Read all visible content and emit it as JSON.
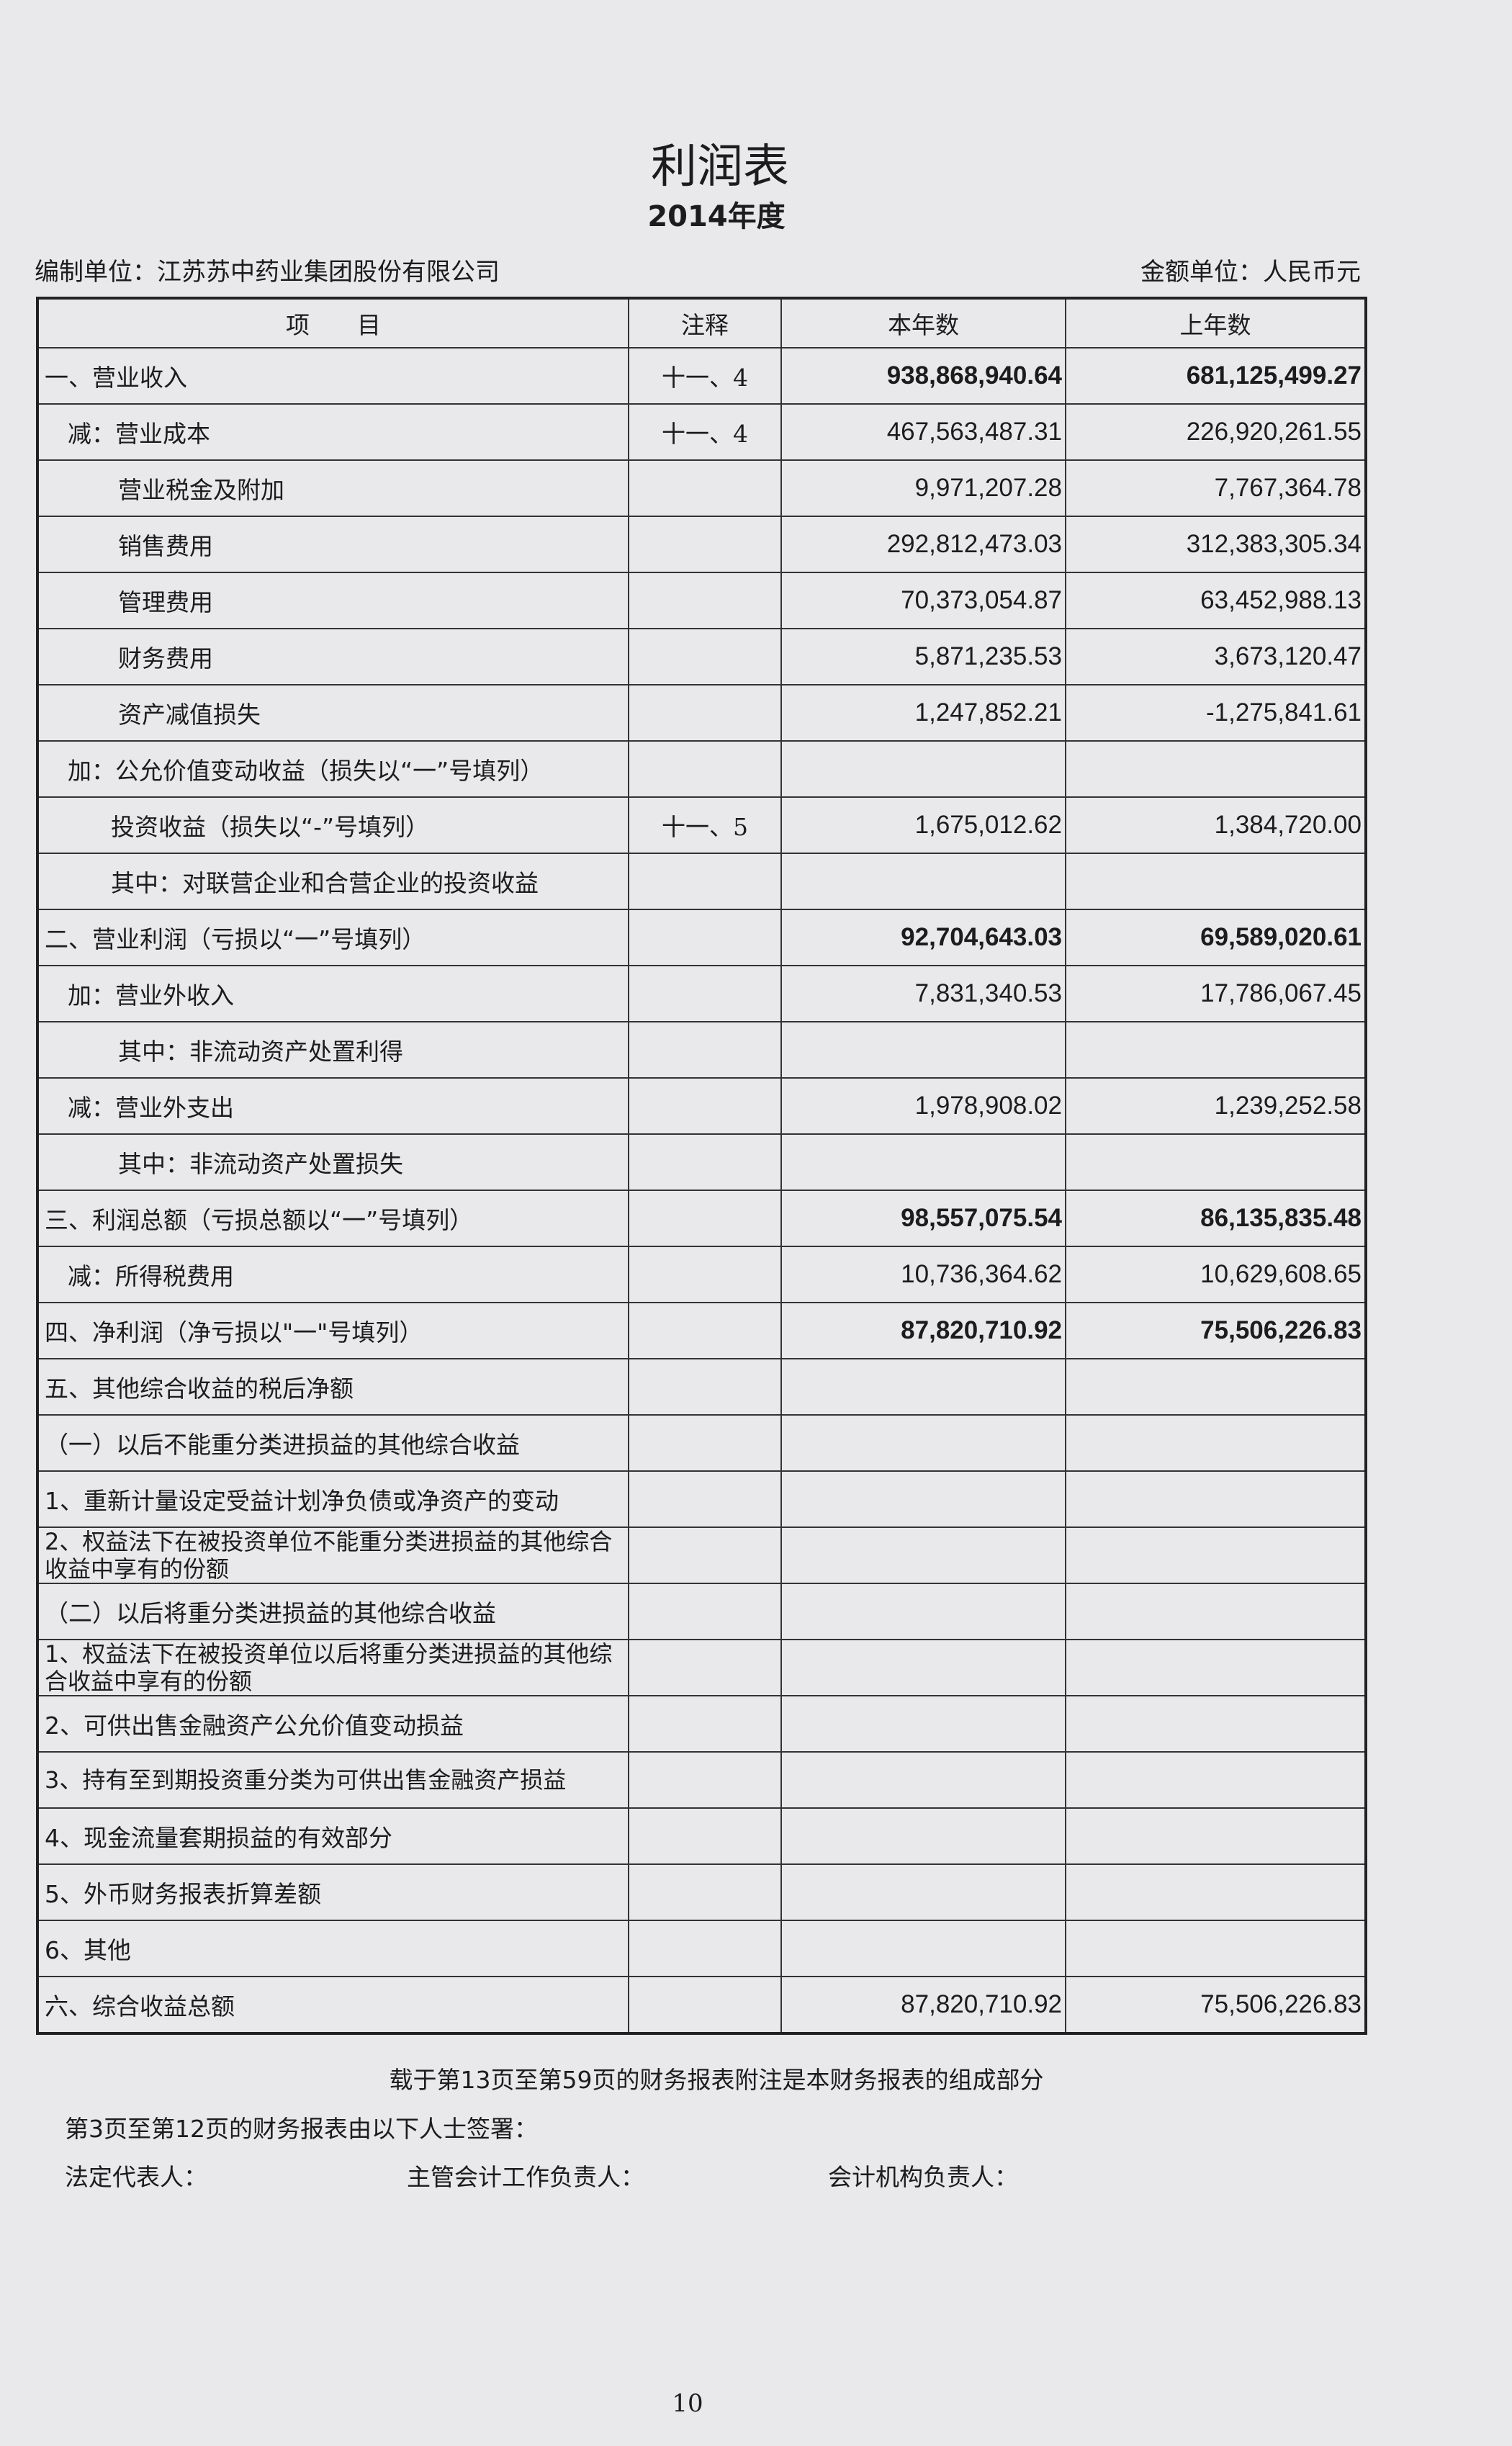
{
  "title": "利润表",
  "subtitle": "2014年度",
  "prepared_by": "编制单位：江苏苏中药业集团股份有限公司",
  "currency_unit": "金额单位：人民币元",
  "table": {
    "headers": [
      "项　　目",
      "注释",
      "本年数",
      "上年数"
    ],
    "rows": [
      {
        "item": "一、营业收入",
        "note": "十一、4",
        "current": "938,868,940.64",
        "prior": "681,125,499.27",
        "indent": 0,
        "bold": true
      },
      {
        "item": "减：营业成本",
        "note": "十一、4",
        "current": "467,563,487.31",
        "prior": "226,920,261.55",
        "indent": 1
      },
      {
        "item": "营业税金及附加",
        "note": "",
        "current": "9,971,207.28",
        "prior": "7,767,364.78",
        "indent": 2
      },
      {
        "item": "销售费用",
        "note": "",
        "current": "292,812,473.03",
        "prior": "312,383,305.34",
        "indent": 2
      },
      {
        "item": "管理费用",
        "note": "",
        "current": "70,373,054.87",
        "prior": "63,452,988.13",
        "indent": 2
      },
      {
        "item": "财务费用",
        "note": "",
        "current": "5,871,235.53",
        "prior": "3,673,120.47",
        "indent": 2
      },
      {
        "item": "资产减值损失",
        "note": "",
        "current": "1,247,852.21",
        "prior": "-1,275,841.61",
        "indent": 2
      },
      {
        "item": "加：公允价值变动收益（损失以“一”号填列）",
        "note": "",
        "current": "",
        "prior": "",
        "indent": 1
      },
      {
        "item": "投资收益（损失以“-”号填列）",
        "note": "十一、5",
        "current": "1,675,012.62",
        "prior": "1,384,720.00",
        "indent": 3
      },
      {
        "item": "其中：对联营企业和合营企业的投资收益",
        "note": "",
        "current": "",
        "prior": "",
        "indent": 3
      },
      {
        "item": "二、营业利润（亏损以“一”号填列）",
        "note": "",
        "current": "92,704,643.03",
        "prior": "69,589,020.61",
        "indent": 0,
        "bold": true
      },
      {
        "item": "加：营业外收入",
        "note": "",
        "current": "7,831,340.53",
        "prior": "17,786,067.45",
        "indent": 1
      },
      {
        "item": "其中：非流动资产处置利得",
        "note": "",
        "current": "",
        "prior": "",
        "indent": 2
      },
      {
        "item": "减：营业外支出",
        "note": "",
        "current": "1,978,908.02",
        "prior": "1,239,252.58",
        "indent": 1
      },
      {
        "item": "其中：非流动资产处置损失",
        "note": "",
        "current": "",
        "prior": "",
        "indent": 2
      },
      {
        "item": "三、利润总额（亏损总额以“一”号填列）",
        "note": "",
        "current": "98,557,075.54",
        "prior": "86,135,835.48",
        "indent": 0,
        "bold": true
      },
      {
        "item": "减：所得税费用",
        "note": "",
        "current": "10,736,364.62",
        "prior": "10,629,608.65",
        "indent": 1
      },
      {
        "item": "四、净利润（净亏损以\"一\"号填列）",
        "note": "",
        "current": "87,820,710.92",
        "prior": "75,506,226.83",
        "indent": 0,
        "bold": true
      },
      {
        "item": "五、其他综合收益的税后净额",
        "note": "",
        "current": "",
        "prior": "",
        "indent": 0
      },
      {
        "item": "（一）以后不能重分类进损益的其他综合收益",
        "note": "",
        "current": "",
        "prior": "",
        "indent": 0
      },
      {
        "item": "1、重新计量设定受益计划净负债或净资产的变动",
        "note": "",
        "current": "",
        "prior": "",
        "indent": 0
      },
      {
        "item": "2、权益法下在被投资单位不能重分类进损益的其他综合收益中享有的份额",
        "note": "",
        "current": "",
        "prior": "",
        "indent": 0,
        "two_line": true
      },
      {
        "item": "（二）以后将重分类进损益的其他综合收益",
        "note": "",
        "current": "",
        "prior": "",
        "indent": 0
      },
      {
        "item": "1、权益法下在被投资单位以后将重分类进损益的其他综合收益中享有的份额",
        "note": "",
        "current": "",
        "prior": "",
        "indent": 0,
        "two_line": true
      },
      {
        "item": "2、可供出售金融资产公允价值变动损益",
        "note": "",
        "current": "",
        "prior": "",
        "indent": 0
      },
      {
        "item": "3、持有至到期投资重分类为可供出售金融资产损益",
        "note": "",
        "current": "",
        "prior": "",
        "indent": 0,
        "two_line": true
      },
      {
        "item": "4、现金流量套期损益的有效部分",
        "note": "",
        "current": "",
        "prior": "",
        "indent": 0
      },
      {
        "item": "5、外币财务报表折算差额",
        "note": "",
        "current": "",
        "prior": "",
        "indent": 0
      },
      {
        "item": "6、其他",
        "note": "",
        "current": "",
        "prior": "",
        "indent": 0
      },
      {
        "item": "六、综合收益总额",
        "note": "",
        "current": "87,820,710.92",
        "prior": "75,506,226.83",
        "indent": 0
      }
    ]
  },
  "footer": {
    "note": "载于第13页至第59页的财务报表附注是本财务报表的组成部分",
    "sign_intro": "第3页至第12页的财务报表由以下人士签署：",
    "legal_rep": "法定代表人：",
    "accounting_head": "主管会计工作负责人：",
    "accounting_dept_head": "会计机构负责人："
  },
  "page_number": "10"
}
